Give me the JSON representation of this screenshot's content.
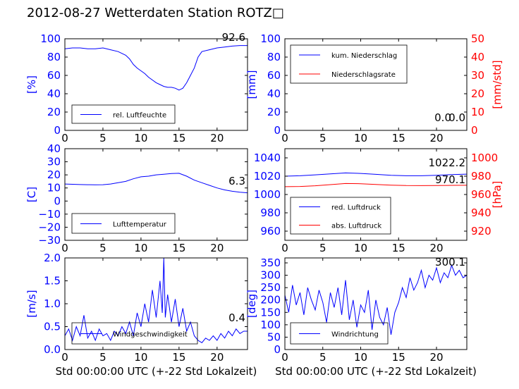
{
  "title": "2012-08-27 Wetterdaten Station ROTZ□",
  "colors": {
    "primary": "#0000ff",
    "secondary": "#ff0000",
    "axis": "#000000"
  },
  "chart_data": [
    {
      "type": "line",
      "id": "humidity",
      "xlim": [
        0,
        24
      ],
      "ylim": [
        0,
        100
      ],
      "xticks": [
        "0",
        "5",
        "10",
        "15",
        "20"
      ],
      "yticks": [
        "0",
        "20",
        "40",
        "60",
        "80",
        "100"
      ],
      "ylabel": "[%]",
      "xlabel": "",
      "value_label": "92.6",
      "legend": [
        "rel. Luftfeuchte"
      ],
      "series": [
        {
          "name": "rel. Luftfeuchte",
          "color": "#0000ff",
          "x": [
            0,
            1,
            2,
            3,
            4,
            5,
            6,
            7,
            7.5,
            8,
            8.5,
            9,
            9.5,
            10,
            10.5,
            11,
            11.5,
            12,
            12.5,
            13,
            13.5,
            14,
            14.5,
            15,
            15.5,
            16,
            16.5,
            17,
            17.5,
            18,
            19,
            20,
            21,
            22,
            23,
            24
          ],
          "y": [
            89,
            90,
            90,
            89,
            89,
            90,
            88,
            86,
            84,
            82,
            78,
            72,
            68,
            65,
            62,
            58,
            55,
            52,
            50,
            48,
            47,
            47,
            46,
            44,
            46,
            52,
            60,
            68,
            80,
            86,
            88,
            90,
            91,
            92,
            92.6,
            92.6
          ]
        }
      ]
    },
    {
      "type": "line",
      "id": "precipitation",
      "xlim": [
        0,
        24
      ],
      "ylim": [
        0,
        100
      ],
      "y2lim": [
        0,
        50
      ],
      "xticks": [
        "0",
        "5",
        "10",
        "15",
        "20"
      ],
      "yticks": [
        "0",
        "20",
        "40",
        "60",
        "80",
        "100"
      ],
      "y2ticks": [
        "0",
        "10",
        "20",
        "30",
        "40",
        "50"
      ],
      "ylabel": "[mm]",
      "y2label": "[mm/std]",
      "xlabel": "",
      "value_label": "0.0",
      "value_label2": "0.0",
      "legend": [
        "kum. Niederschlag",
        "Niederschlagsrate"
      ],
      "series": [
        {
          "name": "kum. Niederschlag",
          "color": "#0000ff",
          "axis": "y",
          "x": [
            0,
            24
          ],
          "y": [
            0,
            0
          ]
        },
        {
          "name": "Niederschlagsrate",
          "color": "#ff0000",
          "axis": "y2",
          "x": [
            0,
            24
          ],
          "y": [
            0,
            0
          ]
        }
      ]
    },
    {
      "type": "line",
      "id": "temperature",
      "xlim": [
        0,
        24
      ],
      "ylim": [
        -30,
        40
      ],
      "xticks": [
        "0",
        "5",
        "10",
        "15",
        "20"
      ],
      "yticks": [
        "−30",
        "−20",
        "−10",
        "0",
        "10",
        "20",
        "30",
        "40"
      ],
      "ylabel": "[C]",
      "xlabel": "",
      "value_label": "6.3",
      "legend": [
        "Lufttemperatur"
      ],
      "series": [
        {
          "name": "Lufttemperatur",
          "color": "#0000ff",
          "x": [
            0,
            1,
            2,
            3,
            4,
            5,
            6,
            7,
            8,
            9,
            10,
            11,
            12,
            13,
            14,
            15,
            16,
            17,
            18,
            19,
            20,
            21,
            22,
            23,
            24
          ],
          "y": [
            13,
            12.8,
            12.6,
            12.5,
            12.4,
            12.5,
            13,
            14,
            15,
            17,
            18.5,
            19,
            20,
            20.5,
            21,
            21.2,
            19,
            16,
            14,
            12,
            10,
            8.5,
            7.5,
            6.8,
            6.3
          ]
        }
      ]
    },
    {
      "type": "line",
      "id": "pressure",
      "xlim": [
        0,
        24
      ],
      "ylim": [
        950,
        1050
      ],
      "y2lim": [
        910,
        1010
      ],
      "xticks": [
        "0",
        "5",
        "10",
        "15",
        "20"
      ],
      "yticks": [
        "960",
        "980",
        "1000",
        "1020",
        "1040"
      ],
      "y2ticks": [
        "920",
        "940",
        "960",
        "980",
        "1000"
      ],
      "ylabel": "",
      "y2label": "[hPa]",
      "xlabel": "",
      "value_label": "1022.2",
      "value_label2": "970.1",
      "legend": [
        "red. Luftdruck",
        "abs. Luftdruck"
      ],
      "series": [
        {
          "name": "red. Luftdruck",
          "color": "#0000ff",
          "axis": "y",
          "x": [
            0,
            2,
            4,
            6,
            8,
            10,
            12,
            14,
            16,
            18,
            20,
            22,
            24
          ],
          "y": [
            1020,
            1020.5,
            1021.5,
            1022.5,
            1023.5,
            1023,
            1022,
            1021,
            1020.5,
            1020.5,
            1021,
            1021.8,
            1022.2
          ]
        },
        {
          "name": "abs. Luftdruck",
          "color": "#ff0000",
          "axis": "y2",
          "x": [
            0,
            2,
            4,
            6,
            8,
            10,
            12,
            14,
            16,
            18,
            20,
            22,
            24
          ],
          "y": [
            968.5,
            968.8,
            969.5,
            970.8,
            972,
            971.8,
            971,
            970.2,
            969.8,
            969.7,
            969.8,
            970,
            970.1
          ]
        }
      ]
    },
    {
      "type": "line",
      "id": "wind-speed",
      "xlim": [
        0,
        24
      ],
      "ylim": [
        0,
        2.0
      ],
      "xticks": [
        "0",
        "5",
        "10",
        "15",
        "20"
      ],
      "yticks": [
        "0.0",
        "0.5",
        "1.0",
        "1.5",
        "2.0"
      ],
      "ylabel": "[m/s]",
      "xlabel": "Std 00:00:00 UTC (+-22 Std Lokalzeit)",
      "value_label": "0.4",
      "legend": [
        "Windgeschwindigkeit"
      ],
      "series": [
        {
          "name": "Windgeschwindigkeit",
          "color": "#0000ff",
          "x": [
            0,
            0.5,
            1,
            1.5,
            2,
            2.5,
            3,
            3.5,
            4,
            4.5,
            5,
            5.5,
            6,
            6.5,
            7,
            7.5,
            8,
            8.5,
            9,
            9.5,
            10,
            10.5,
            11,
            11.5,
            12,
            12.5,
            12.8,
            13,
            13.2,
            13.5,
            14,
            14.5,
            15,
            15.5,
            16,
            16.5,
            17,
            17.5,
            18,
            18.5,
            19,
            19.5,
            20,
            20.5,
            21,
            21.5,
            22,
            22.5,
            23,
            23.5,
            24
          ],
          "y": [
            0.3,
            0.45,
            0.2,
            0.5,
            0.3,
            0.75,
            0.25,
            0.4,
            0.2,
            0.45,
            0.3,
            0.35,
            0.2,
            0.4,
            0.3,
            0.5,
            0.35,
            0.6,
            0.3,
            0.8,
            0.5,
            1.0,
            0.6,
            1.3,
            0.7,
            1.5,
            0.8,
            2.0,
            0.7,
            1.2,
            0.6,
            1.1,
            0.5,
            0.9,
            0.4,
            0.6,
            0.3,
            0.2,
            0.15,
            0.25,
            0.2,
            0.3,
            0.2,
            0.35,
            0.25,
            0.4,
            0.3,
            0.45,
            0.35,
            0.4,
            0.4
          ]
        }
      ]
    },
    {
      "type": "line",
      "id": "wind-direction",
      "xlim": [
        0,
        24
      ],
      "ylim": [
        0,
        370
      ],
      "xticks": [
        "0",
        "5",
        "10",
        "15",
        "20"
      ],
      "yticks": [
        "0",
        "50",
        "100",
        "150",
        "200",
        "250",
        "300",
        "350"
      ],
      "ylabel": "[deg]",
      "xlabel": "Std 00:00:00 UTC (+-22 Std Lokalzeit)",
      "value_label": "300.1",
      "legend": [
        "Windrichtung"
      ],
      "series": [
        {
          "name": "Windrichtung",
          "color": "#0000ff",
          "x": [
            0,
            0.5,
            1,
            1.5,
            2,
            2.5,
            3,
            3.5,
            4,
            4.5,
            5,
            5.5,
            6,
            6.5,
            7,
            7.5,
            8,
            8.5,
            9,
            9.5,
            10,
            10.5,
            11,
            11.5,
            12,
            12.5,
            13,
            13.5,
            14,
            14.5,
            15,
            15.5,
            16,
            16.5,
            17,
            17.5,
            18,
            18.5,
            19,
            19.5,
            20,
            20.5,
            21,
            21.5,
            22,
            22.5,
            23,
            23.5,
            24
          ],
          "y": [
            220,
            150,
            260,
            180,
            230,
            140,
            250,
            200,
            160,
            240,
            190,
            110,
            230,
            170,
            250,
            140,
            280,
            120,
            200,
            90,
            180,
            150,
            240,
            80,
            200,
            130,
            100,
            170,
            60,
            150,
            190,
            250,
            210,
            290,
            240,
            270,
            320,
            250,
            300,
            280,
            330,
            270,
            310,
            290,
            340,
            300,
            320,
            290,
            300
          ]
        }
      ]
    }
  ]
}
